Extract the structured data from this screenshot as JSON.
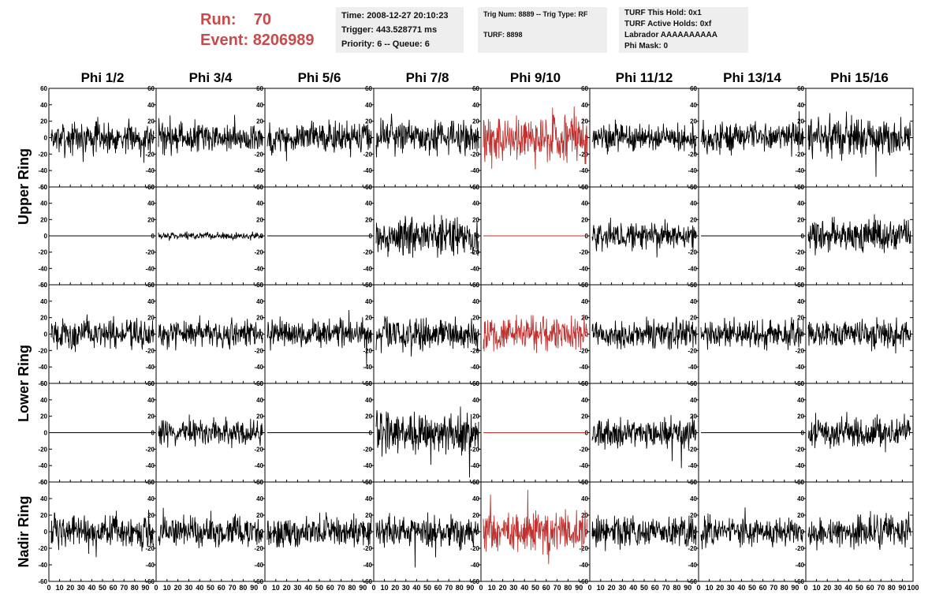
{
  "header": {
    "run_label": "Run:",
    "run_value": "70",
    "event_label": "Event:",
    "event_value": "8206989",
    "box1": [
      "Time: 2008-12-27 20:10:23",
      "Trigger: 443.528771 ms",
      "Priority: 6 -- Queue: 6"
    ],
    "box2": [
      "Trig Num: 8889 -- Trig Type: RF",
      "TURF: 8898"
    ],
    "box3": [
      "TURF This Hold: 0x1",
      "TURF Active Holds: 0xf",
      "Labrador AAAAAAAAAA",
      "Phi Mask: 0"
    ]
  },
  "chart_data": {
    "type": "line",
    "columns": [
      "Phi 1/2",
      "Phi 3/4",
      "Phi 5/6",
      "Phi 7/8",
      "Phi 9/10",
      "Phi 11/12",
      "Phi 13/14",
      "Phi 15/16"
    ],
    "ring_labels": [
      "Upper Ring",
      "Lower Ring",
      "Nadir Ring"
    ],
    "y_ticks": [
      "60",
      "40",
      "20",
      "0",
      "-20",
      "-40",
      "-60"
    ],
    "x_ticks": [
      "0",
      "10",
      "20",
      "30",
      "40",
      "50",
      "60",
      "70",
      "80",
      "90",
      "100"
    ],
    "ylim": [
      -60,
      60
    ],
    "xlim": [
      0,
      100
    ],
    "colors": {
      "normal": "#000000",
      "triggered": "#c0312f"
    },
    "highlight_column": 4,
    "panels": [
      [
        {
          "amp": 15,
          "color": "black"
        },
        {
          "amp": 14,
          "color": "black"
        },
        {
          "amp": 15,
          "color": "black"
        },
        {
          "amp": 15,
          "color": "black"
        },
        {
          "amp": 24,
          "color": "red"
        },
        {
          "amp": 13,
          "color": "black"
        },
        {
          "amp": 14,
          "color": "black"
        },
        {
          "amp": 18,
          "color": "black"
        }
      ],
      [
        {
          "amp": 0,
          "color": "black"
        },
        {
          "amp": 3,
          "color": "black"
        },
        {
          "amp": 0,
          "color": "black"
        },
        {
          "amp": 18,
          "color": "black"
        },
        {
          "amp": 0,
          "color": "red"
        },
        {
          "amp": 13,
          "color": "black"
        },
        {
          "amp": 0,
          "color": "black"
        },
        {
          "amp": 15,
          "color": "black"
        }
      ],
      [
        {
          "amp": 14,
          "color": "black"
        },
        {
          "amp": 13,
          "color": "black"
        },
        {
          "amp": 13,
          "color": "black"
        },
        {
          "amp": 16,
          "color": "black"
        },
        {
          "amp": 16,
          "color": "red"
        },
        {
          "amp": 14,
          "color": "black"
        },
        {
          "amp": 13,
          "color": "black"
        },
        {
          "amp": 14,
          "color": "black"
        }
      ],
      [
        {
          "amp": 0,
          "color": "black"
        },
        {
          "amp": 12,
          "color": "black"
        },
        {
          "amp": 0,
          "color": "black"
        },
        {
          "amp": 20,
          "color": "black"
        },
        {
          "amp": 0,
          "color": "red"
        },
        {
          "amp": 14,
          "color": "black"
        },
        {
          "amp": 0,
          "color": "black"
        },
        {
          "amp": 14,
          "color": "black"
        }
      ],
      [
        {
          "amp": 15,
          "color": "black"
        },
        {
          "amp": 14,
          "color": "black"
        },
        {
          "amp": 14,
          "color": "black"
        },
        {
          "amp": 16,
          "color": "black"
        },
        {
          "amp": 20,
          "color": "red"
        },
        {
          "amp": 15,
          "color": "black"
        },
        {
          "amp": 13,
          "color": "black"
        },
        {
          "amp": 14,
          "color": "black"
        }
      ]
    ]
  }
}
